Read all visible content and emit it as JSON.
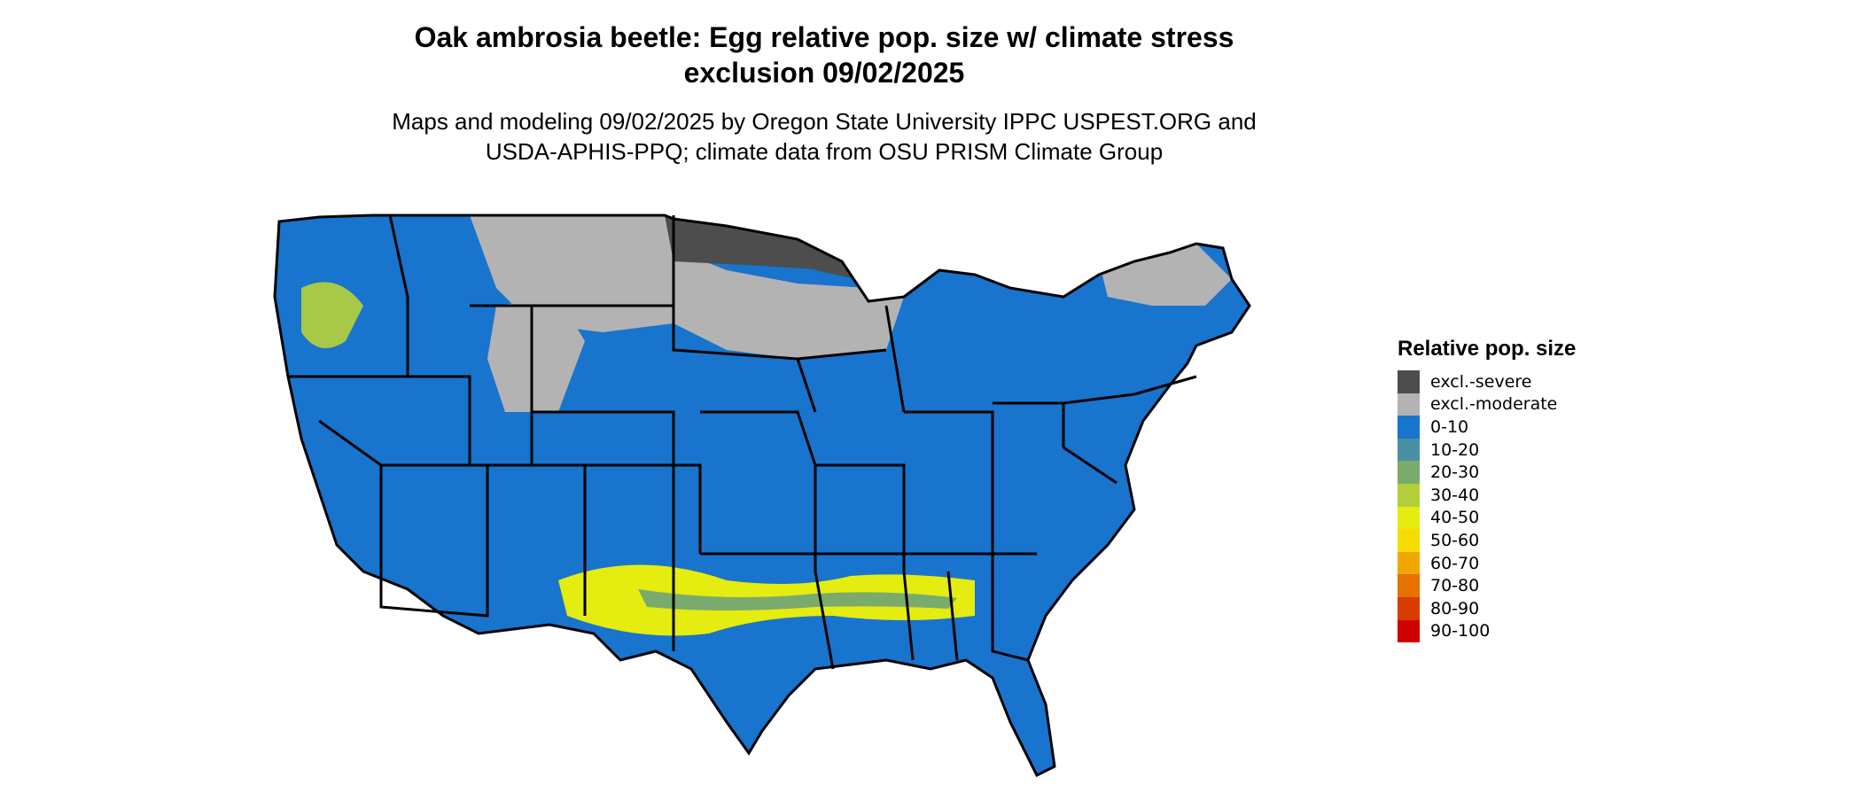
{
  "title_line1": "Oak ambrosia beetle: Egg relative pop. size w/ climate stress",
  "title_line2": "exclusion 09/02/2025",
  "subtitle_line1": "Maps and modeling 09/02/2025 by Oregon State University IPPC USPEST.ORG and",
  "subtitle_line2": "USDA-APHIS-PPQ; climate data from OSU PRISM Climate Group",
  "legend": {
    "title": "Relative pop. size",
    "items": [
      {
        "label": "excl.-severe",
        "color": "#4d4d4d"
      },
      {
        "label": "excl.-moderate",
        "color": "#b3b3b3"
      },
      {
        "label": "0-10",
        "color": "#1874cd"
      },
      {
        "label": "10-20",
        "color": "#4a90a4"
      },
      {
        "label": "20-30",
        "color": "#7aab6c"
      },
      {
        "label": "30-40",
        "color": "#b4cf3a"
      },
      {
        "label": "40-50",
        "color": "#e5ec0f"
      },
      {
        "label": "50-60",
        "color": "#f7dc00"
      },
      {
        "label": "60-70",
        "color": "#f0a800"
      },
      {
        "label": "70-80",
        "color": "#e57200"
      },
      {
        "label": "80-90",
        "color": "#d93c00"
      },
      {
        "label": "90-100",
        "color": "#d00000"
      }
    ]
  },
  "map_colors": {
    "severe": "#4d4d4d",
    "moderate": "#b3b3b3",
    "low": "#1874cd",
    "mid_low": "#4a90a4",
    "mid": "#7aab6c",
    "mid_high": "#b4cf3a",
    "high": "#e5ec0f",
    "peak": "#f7dc00",
    "border": "#000000"
  }
}
